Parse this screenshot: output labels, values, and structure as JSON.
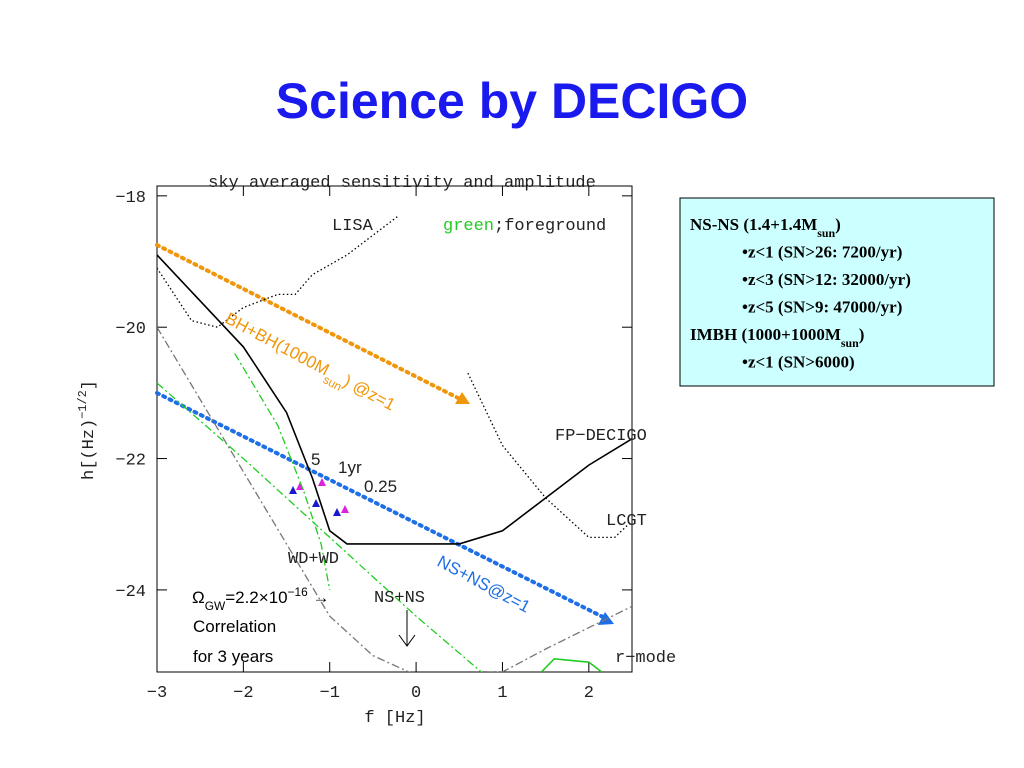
{
  "title": "Science by DECIGO",
  "chart_data": {
    "type": "line",
    "title": "sky averaged sensitivity and amplitude",
    "x_label": "f [Hz]",
    "y_label": [
      "h[(Hz)",
      "−1/2",
      "]"
    ],
    "xlim": [
      -3,
      2.5
    ],
    "ylim": [
      -25.25,
      -17.85
    ],
    "xticks": [
      {
        "value": -3,
        "label": "−3"
      },
      {
        "value": -2,
        "label": "−2"
      },
      {
        "value": -1,
        "label": "−1"
      },
      0,
      1,
      2
    ],
    "yticks": [
      {
        "value": -18,
        "label": "−18"
      },
      {
        "value": -20,
        "label": "−20"
      },
      {
        "value": -22,
        "label": "−22"
      },
      {
        "value": -24,
        "label": "−24"
      }
    ],
    "series": [
      {
        "name": "FP−DECIGO",
        "color": "#000000",
        "linestyle": "solid",
        "x": [
          -3,
          -2,
          -1.5,
          -1.2,
          -1,
          -0.8,
          0.5,
          1,
          1.5,
          2,
          2.5
        ],
        "values": [
          -18.9,
          -20.3,
          -21.3,
          -22.3,
          -23.1,
          -23.3,
          -23.3,
          -23.1,
          -22.6,
          -22.1,
          -21.7
        ]
      },
      {
        "name": "LISA",
        "color": "#000000",
        "linestyle": "dotted",
        "x": [
          -3,
          -2.6,
          -2.3,
          -2,
          -1.6,
          -1.4,
          -1.2,
          -0.8,
          -0.2
        ],
        "values": [
          -19.1,
          -19.9,
          -20.0,
          -19.7,
          -19.5,
          -19.5,
          -19.2,
          -18.9,
          -18.3
        ]
      },
      {
        "name": "LCGT",
        "color": "#000000",
        "linestyle": "dotted",
        "x": [
          0.6,
          1.0,
          1.5,
          2.0,
          2.3,
          2.5
        ],
        "values": [
          -20.7,
          -21.8,
          -22.6,
          -23.2,
          -23.2,
          -22.95
        ]
      },
      {
        "name": "NS+NS",
        "color": "#777777",
        "linestyle": "dashdot",
        "x": [
          -3,
          -2,
          -1,
          -0.5,
          0,
          1,
          1.5,
          2.5
        ],
        "values": [
          -20.0,
          -22.2,
          -24.4,
          -25.0,
          -25.3,
          -25.25,
          -24.9,
          -24.25
        ]
      },
      {
        "name": "WD+WD",
        "color": "#22cc22",
        "linestyle": "dashdot",
        "x": [
          -3,
          -2,
          -1,
          0,
          0.8
        ],
        "values": [
          -20.85,
          -22.0,
          -23.2,
          -24.4,
          -25.3
        ]
      },
      {
        "color": "#22cc22",
        "linestyle": "dashdot",
        "x": [
          -2.1,
          -1.6,
          -1.3,
          -1.1,
          -1.0
        ],
        "values": [
          -20.4,
          -21.5,
          -22.5,
          -23.3,
          -24.0
        ]
      },
      {
        "name": "r−mode",
        "color": "#22cc22",
        "linestyle": "solid",
        "x": [
          1.45,
          1.6,
          2.0,
          2.15
        ],
        "values": [
          -25.25,
          -25.05,
          -25.1,
          -25.25
        ]
      }
    ],
    "foreground_label": [
      "green",
      ";foreground"
    ],
    "point_labels": [
      "5",
      "1yr",
      "0.25"
    ],
    "bh_label": [
      "BH+BH(1000M",
      "sun",
      ") @z=1"
    ],
    "ns_label": "NS+NS@z=1",
    "omega_label": [
      "Ω",
      "GW",
      "=2.2×10",
      "−16",
      " →"
    ],
    "correlation_label": [
      "Correlation",
      "for 3 years"
    ]
  },
  "info_box": {
    "lines": [
      {
        "parts": [
          "NS-NS (1.4+1.4M",
          "sun",
          ")"
        ]
      },
      {
        "parts": [
          "•z<1 (SN>26: 7200/yr)"
        ]
      },
      {
        "parts": [
          "•z<3 (SN>12: 32000/yr)"
        ]
      },
      {
        "parts": [
          "•z<5 (SN>9: 47000/yr)"
        ]
      },
      {
        "parts": [
          "IMBH (1000+1000M",
          "sun",
          ")"
        ]
      },
      {
        "parts": [
          "•z<1 (SN>6000)"
        ]
      }
    ]
  }
}
